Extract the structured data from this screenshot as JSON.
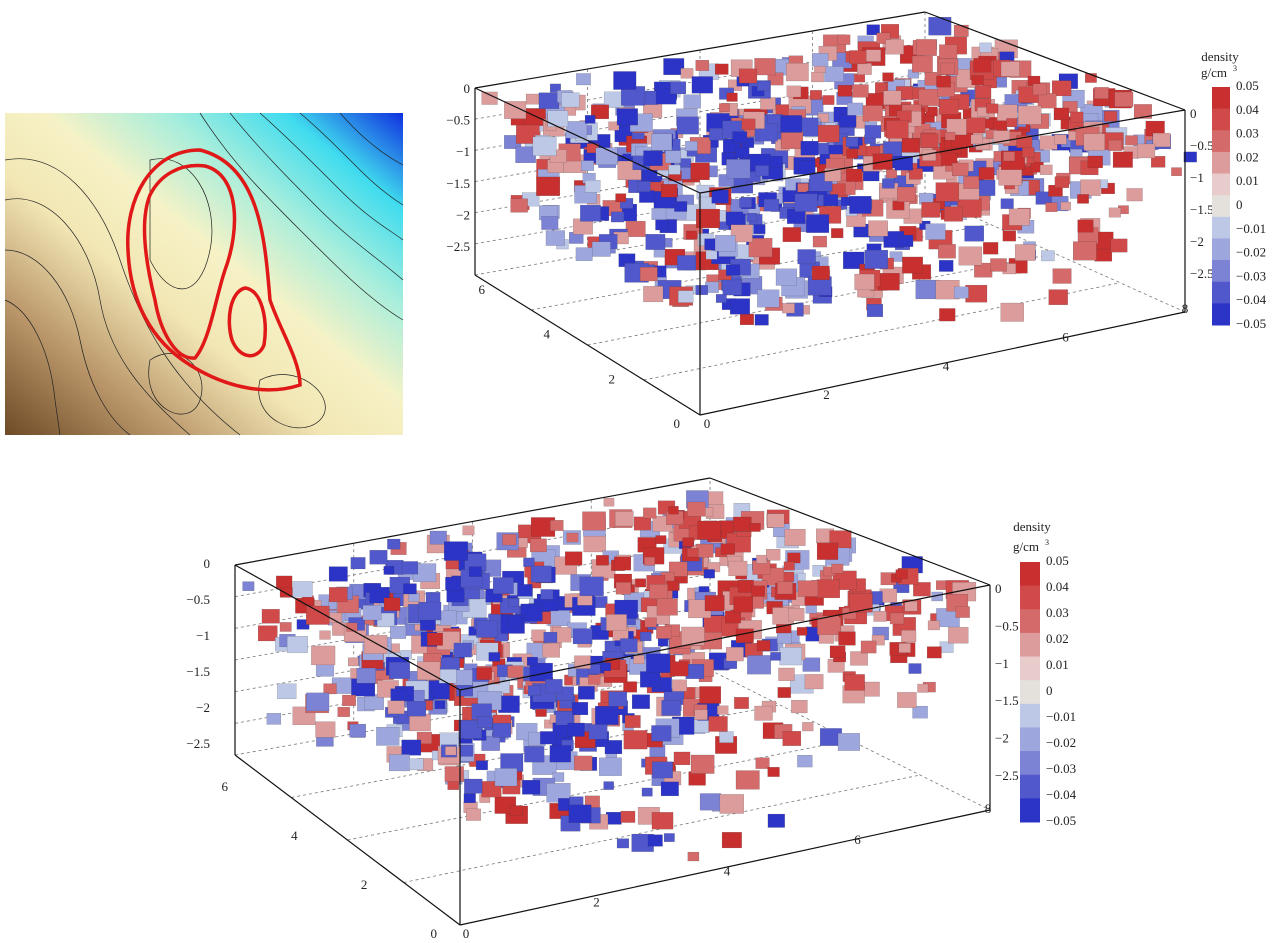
{
  "plots": [
    {
      "z_ticks_left": [
        "0",
        "−0.5",
        "−1",
        "−1.5",
        "−2",
        "−2.5"
      ],
      "z_ticks_right": [
        "0",
        "−0.5",
        "−1",
        "−1.5",
        "−2",
        "−2.5"
      ],
      "y_ticks": [
        "6",
        "4",
        "2",
        "0"
      ],
      "x_ticks": [
        "0",
        "2",
        "4",
        "6",
        "8"
      ],
      "colorbar": {
        "title": "density",
        "unit": "g/cm",
        "unit_exponent": "3",
        "labels": [
          "0.05",
          "0.04",
          "0.03",
          "0.02",
          "0.01",
          "0",
          "−0.01",
          "−0.02",
          "−0.03",
          "−0.04",
          "−0.05"
        ],
        "colors": [
          "#c83030",
          "#d04a4a",
          "#d46a6a",
          "#dc9c9c",
          "#e8cccc",
          "#e4e0dc",
          "#bcc8e6",
          "#9ea6de",
          "#7c82d4",
          "#5058cc",
          "#2c34c8"
        ]
      }
    },
    {
      "z_ticks_left": [
        "0",
        "−0.5",
        "−1",
        "−1.5",
        "−2",
        "−2.5"
      ],
      "z_ticks_right": [
        "0",
        "−0.5",
        "−1",
        "−1.5",
        "−2",
        "−2.5"
      ],
      "y_ticks": [
        "6",
        "4",
        "2",
        "0"
      ],
      "x_ticks": [
        "0",
        "2",
        "4",
        "6",
        "8"
      ],
      "colorbar": {
        "title": "density",
        "unit": "g/cm",
        "unit_exponent": "3",
        "labels": [
          "0.05",
          "0.04",
          "0.03",
          "0.02",
          "0.01",
          "0",
          "−0.01",
          "−0.02",
          "−0.03",
          "−0.04",
          "−0.05"
        ],
        "colors": [
          "#c83030",
          "#d04a4a",
          "#d46a6a",
          "#dc9c9c",
          "#e8cccc",
          "#e4e0dc",
          "#bcc8e6",
          "#9ea6de",
          "#7c82d4",
          "#5058cc",
          "#2c34c8"
        ]
      }
    }
  ]
}
